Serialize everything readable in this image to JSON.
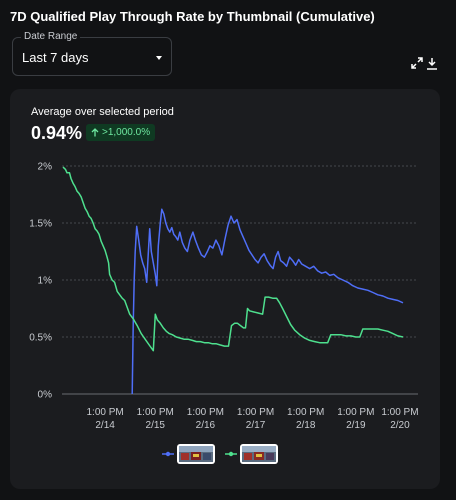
{
  "header": {
    "title": "7D Qualified Play Through Rate by Thumbnail (Cumulative)"
  },
  "date_range": {
    "label": "Date Range",
    "value": "Last 7 days"
  },
  "toolbar": {
    "icons": [
      "expand-icon",
      "download-icon"
    ]
  },
  "summary": {
    "label": "Average over selected period",
    "value": "0.94%",
    "change": ">1,000.0%",
    "change_direction": "up",
    "change_color": "#6ee7a0"
  },
  "colors": {
    "series_blue": "#4f6ef7",
    "series_green": "#4ee08e",
    "grid": "#55585d",
    "axis_text": "#c9ccd1"
  },
  "chart_data": {
    "type": "line",
    "title": "7D Qualified Play Through Rate by Thumbnail (Cumulative)",
    "ylim": [
      0,
      2
    ],
    "y_ticks": [
      0,
      0.5,
      1,
      1.5,
      2
    ],
    "y_tick_labels": [
      "0%",
      "0.5%",
      "1%",
      "1.5%",
      "2%"
    ],
    "xlim": [
      0,
      7.1
    ],
    "x_ticks": [
      {
        "x": 0.86,
        "time": "1:00 PM",
        "date": "2/14"
      },
      {
        "x": 1.86,
        "time": "1:00 PM",
        "date": "2/15"
      },
      {
        "x": 2.86,
        "time": "1:00 PM",
        "date": "2/16"
      },
      {
        "x": 3.86,
        "time": "1:00 PM",
        "date": "2/17"
      },
      {
        "x": 4.86,
        "time": "1:00 PM",
        "date": "2/18"
      },
      {
        "x": 5.86,
        "time": "1:00 PM",
        "date": "2/19"
      },
      {
        "x": 6.74,
        "time": "1:00 PM",
        "date": "2/20"
      }
    ],
    "grid": true,
    "legend": "bottom-center",
    "series": [
      {
        "color": "#4f6ef7",
        "points": [
          [
            1.4,
            0.0
          ],
          [
            1.42,
            0.6
          ],
          [
            1.44,
            1.0
          ],
          [
            1.46,
            1.25
          ],
          [
            1.49,
            1.47
          ],
          [
            1.53,
            1.35
          ],
          [
            1.57,
            1.22
          ],
          [
            1.61,
            1.15
          ],
          [
            1.65,
            1.1
          ],
          [
            1.69,
            0.98
          ],
          [
            1.72,
            1.22
          ],
          [
            1.75,
            1.45
          ],
          [
            1.78,
            1.25
          ],
          [
            1.82,
            1.15
          ],
          [
            1.86,
            1.05
          ],
          [
            1.89,
            0.95
          ],
          [
            1.92,
            1.3
          ],
          [
            1.96,
            1.5
          ],
          [
            1.99,
            1.62
          ],
          [
            2.03,
            1.58
          ],
          [
            2.07,
            1.5
          ],
          [
            2.11,
            1.45
          ],
          [
            2.15,
            1.42
          ],
          [
            2.19,
            1.46
          ],
          [
            2.23,
            1.4
          ],
          [
            2.27,
            1.38
          ],
          [
            2.31,
            1.35
          ],
          [
            2.35,
            1.42
          ],
          [
            2.4,
            1.33
          ],
          [
            2.45,
            1.28
          ],
          [
            2.5,
            1.25
          ],
          [
            2.55,
            1.35
          ],
          [
            2.61,
            1.42
          ],
          [
            2.66,
            1.35
          ],
          [
            2.72,
            1.28
          ],
          [
            2.78,
            1.22
          ],
          [
            2.84,
            1.2
          ],
          [
            2.9,
            1.25
          ],
          [
            2.95,
            1.3
          ],
          [
            3.01,
            1.28
          ],
          [
            3.07,
            1.35
          ],
          [
            3.13,
            1.3
          ],
          [
            3.19,
            1.22
          ],
          [
            3.25,
            1.36
          ],
          [
            3.31,
            1.48
          ],
          [
            3.37,
            1.56
          ],
          [
            3.43,
            1.5
          ],
          [
            3.49,
            1.53
          ],
          [
            3.55,
            1.44
          ],
          [
            3.61,
            1.38
          ],
          [
            3.67,
            1.32
          ],
          [
            3.73,
            1.26
          ],
          [
            3.79,
            1.22
          ],
          [
            3.85,
            1.18
          ],
          [
            3.91,
            1.15
          ],
          [
            3.97,
            1.2
          ],
          [
            4.03,
            1.23
          ],
          [
            4.09,
            1.17
          ],
          [
            4.15,
            1.13
          ],
          [
            4.21,
            1.1
          ],
          [
            4.26,
            1.2
          ],
          [
            4.31,
            1.25
          ],
          [
            4.36,
            1.17
          ],
          [
            4.42,
            1.15
          ],
          [
            4.48,
            1.12
          ],
          [
            4.54,
            1.2
          ],
          [
            4.6,
            1.17
          ],
          [
            4.66,
            1.13
          ],
          [
            4.72,
            1.18
          ],
          [
            4.78,
            1.14
          ],
          [
            4.86,
            1.12
          ],
          [
            4.94,
            1.1
          ],
          [
            5.02,
            1.12
          ],
          [
            5.1,
            1.08
          ],
          [
            5.18,
            1.06
          ],
          [
            5.26,
            1.07
          ],
          [
            5.34,
            1.04
          ],
          [
            5.42,
            1.05
          ],
          [
            5.5,
            1.02
          ],
          [
            5.6,
            1.0
          ],
          [
            5.7,
            0.98
          ],
          [
            5.8,
            0.95
          ],
          [
            5.9,
            0.93
          ],
          [
            6.0,
            0.92
          ],
          [
            6.1,
            0.91
          ],
          [
            6.2,
            0.89
          ],
          [
            6.3,
            0.87
          ],
          [
            6.4,
            0.86
          ],
          [
            6.5,
            0.84
          ],
          [
            6.6,
            0.83
          ],
          [
            6.7,
            0.82
          ],
          [
            6.8,
            0.8
          ]
        ]
      },
      {
        "color": "#4ee08e",
        "points": [
          [
            0.02,
            1.99
          ],
          [
            0.07,
            1.97
          ],
          [
            0.1,
            1.94
          ],
          [
            0.15,
            1.94
          ],
          [
            0.18,
            1.89
          ],
          [
            0.22,
            1.85
          ],
          [
            0.26,
            1.82
          ],
          [
            0.3,
            1.78
          ],
          [
            0.34,
            1.76
          ],
          [
            0.38,
            1.73
          ],
          [
            0.42,
            1.68
          ],
          [
            0.46,
            1.63
          ],
          [
            0.5,
            1.6
          ],
          [
            0.54,
            1.56
          ],
          [
            0.58,
            1.54
          ],
          [
            0.62,
            1.5
          ],
          [
            0.66,
            1.45
          ],
          [
            0.7,
            1.43
          ],
          [
            0.74,
            1.4
          ],
          [
            0.78,
            1.34
          ],
          [
            0.82,
            1.3
          ],
          [
            0.86,
            1.26
          ],
          [
            0.9,
            1.2
          ],
          [
            0.93,
            1.15
          ],
          [
            0.95,
            1.05
          ],
          [
            1.0,
            1.0
          ],
          [
            1.05,
            0.98
          ],
          [
            1.1,
            0.9
          ],
          [
            1.15,
            0.87
          ],
          [
            1.2,
            0.84
          ],
          [
            1.25,
            0.82
          ],
          [
            1.3,
            0.76
          ],
          [
            1.35,
            0.7
          ],
          [
            1.42,
            0.66
          ],
          [
            1.5,
            0.6
          ],
          [
            1.58,
            0.53
          ],
          [
            1.66,
            0.48
          ],
          [
            1.74,
            0.43
          ],
          [
            1.82,
            0.38
          ],
          [
            1.86,
            0.7
          ],
          [
            1.9,
            0.65
          ],
          [
            1.96,
            0.62
          ],
          [
            2.02,
            0.58
          ],
          [
            2.08,
            0.55
          ],
          [
            2.14,
            0.53
          ],
          [
            2.2,
            0.52
          ],
          [
            2.28,
            0.5
          ],
          [
            2.36,
            0.49
          ],
          [
            2.44,
            0.48
          ],
          [
            2.52,
            0.48
          ],
          [
            2.6,
            0.47
          ],
          [
            2.68,
            0.46
          ],
          [
            2.76,
            0.46
          ],
          [
            2.84,
            0.45
          ],
          [
            2.92,
            0.45
          ],
          [
            3.0,
            0.44
          ],
          [
            3.08,
            0.44
          ],
          [
            3.16,
            0.43
          ],
          [
            3.24,
            0.42
          ],
          [
            3.32,
            0.42
          ],
          [
            3.38,
            0.6
          ],
          [
            3.44,
            0.62
          ],
          [
            3.5,
            0.62
          ],
          [
            3.56,
            0.6
          ],
          [
            3.62,
            0.58
          ],
          [
            3.66,
            0.58
          ],
          [
            3.7,
            0.75
          ],
          [
            3.74,
            0.73
          ],
          [
            3.82,
            0.72
          ],
          [
            3.92,
            0.71
          ],
          [
            4.0,
            0.7
          ],
          [
            4.05,
            0.85
          ],
          [
            4.12,
            0.85
          ],
          [
            4.2,
            0.84
          ],
          [
            4.28,
            0.84
          ],
          [
            4.34,
            0.8
          ],
          [
            4.4,
            0.75
          ],
          [
            4.48,
            0.68
          ],
          [
            4.56,
            0.61
          ],
          [
            4.64,
            0.56
          ],
          [
            4.74,
            0.52
          ],
          [
            4.84,
            0.49
          ],
          [
            4.94,
            0.47
          ],
          [
            5.04,
            0.46
          ],
          [
            5.14,
            0.45
          ],
          [
            5.24,
            0.45
          ],
          [
            5.3,
            0.45
          ],
          [
            5.36,
            0.52
          ],
          [
            5.46,
            0.52
          ],
          [
            5.56,
            0.52
          ],
          [
            5.66,
            0.51
          ],
          [
            5.76,
            0.51
          ],
          [
            5.86,
            0.5
          ],
          [
            5.94,
            0.5
          ],
          [
            6.0,
            0.57
          ],
          [
            6.1,
            0.57
          ],
          [
            6.2,
            0.57
          ],
          [
            6.3,
            0.57
          ],
          [
            6.4,
            0.56
          ],
          [
            6.5,
            0.55
          ],
          [
            6.6,
            0.53
          ],
          [
            6.7,
            0.51
          ],
          [
            6.8,
            0.5
          ]
        ]
      }
    ]
  }
}
